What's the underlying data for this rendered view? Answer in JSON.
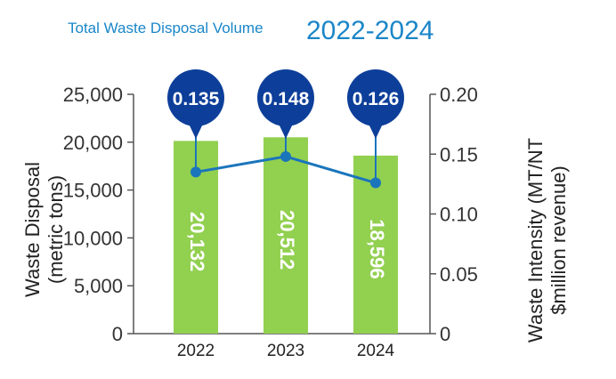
{
  "header": {
    "title": "Total Waste Disposal Volume",
    "years": "2022-2024"
  },
  "colors": {
    "bar": "#92d050",
    "line": "#1a75bb",
    "bubble": "#0d3f9a",
    "title": "#1a86c8",
    "axis": "#555555"
  },
  "chart_data": {
    "type": "bar",
    "categories": [
      "2022",
      "2023",
      "2024"
    ],
    "series": [
      {
        "values": [
          20132,
          20512,
          18596
        ],
        "labels": [
          "20,132",
          "20,512",
          "18,596"
        ],
        "axis": "left"
      },
      {
        "values": [
          0.135,
          0.148,
          0.126
        ],
        "labels": [
          "0.135",
          "0.148",
          "0.126"
        ],
        "axis": "right",
        "type": "line"
      }
    ],
    "ylabel": "Waste Disposal (metric tons)",
    "ylabel_lines": [
      "Waste Disposal",
      "(metric tons)"
    ],
    "y2label": "Waste Intensity (MT/NT $million revenue)",
    "y2label_lines": [
      "Waste Intensity (MT/NT",
      "$million revenue)"
    ],
    "ylim": [
      0,
      25000
    ],
    "yticks": [
      0,
      5000,
      10000,
      15000,
      20000,
      25000
    ],
    "ytick_labels": [
      "0",
      "5,000",
      "10,000",
      "15,000",
      "20,000",
      "25,000"
    ],
    "y2lim": [
      0,
      0.2
    ],
    "y2ticks": [
      0,
      0.05,
      0.1,
      0.15,
      0.2
    ],
    "y2tick_labels": [
      "0",
      "0.05",
      "0.10",
      "0.15",
      "0.20"
    ],
    "grid": false,
    "legend": "none"
  }
}
